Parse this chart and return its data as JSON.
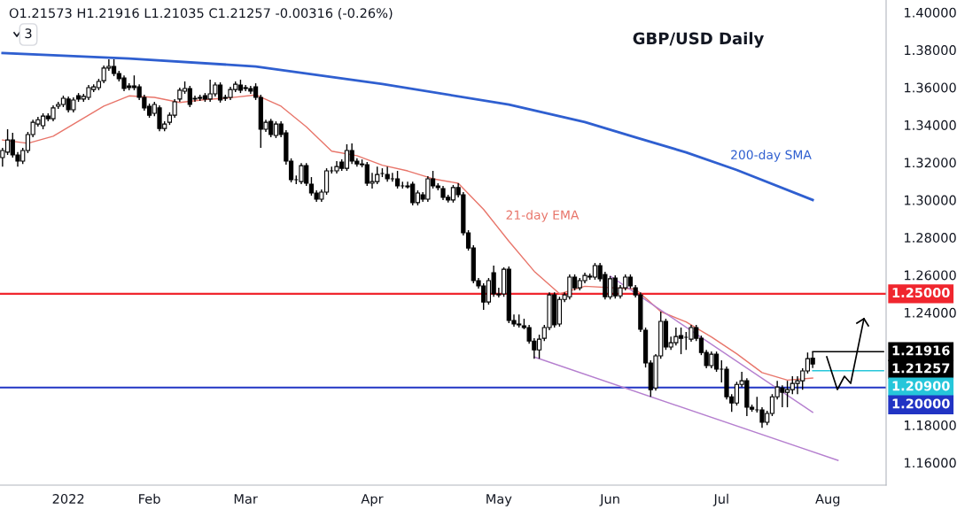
{
  "chart_data": {
    "type": "candlestick",
    "title": "GBP/USD Daily",
    "subtitle": "O1.21573 H1.21916 L1.21035 C1.21257 -0.00316 (-0.26%)",
    "annotations": [
      "3",
      "1.21257"
    ],
    "color": "#000000",
    "categories": [
      null,
      null,
      null,
      null,
      null,
      null,
      null,
      null,
      null,
      null,
      null,
      null,
      null,
      "2022",
      null,
      null,
      null,
      null,
      null,
      null,
      null,
      null,
      null,
      null,
      null,
      null,
      null,
      null,
      null,
      "Feb",
      null,
      null,
      null,
      null,
      null,
      null,
      null,
      null,
      null,
      null,
      null,
      null,
      null,
      null,
      null,
      null,
      null,
      null,
      "Mar",
      null,
      null,
      null,
      null,
      null,
      null,
      null,
      null,
      null,
      null,
      null,
      null,
      null,
      null,
      null,
      null,
      null,
      null,
      null,
      null,
      null,
      null,
      null,
      null,
      "Apr",
      null,
      null,
      null,
      null,
      null,
      null,
      null,
      null,
      null,
      null,
      null,
      null,
      null,
      null,
      null,
      null,
      null,
      null,
      null,
      null,
      null,
      null,
      null,
      null,
      "May",
      null,
      null,
      null,
      null,
      null,
      null,
      null,
      null,
      null,
      null,
      null,
      null,
      null,
      null,
      null,
      null,
      null,
      null,
      null,
      null,
      null,
      "Jun",
      null,
      null,
      null,
      null,
      null,
      null,
      null,
      null,
      null,
      null,
      null,
      null,
      null,
      null,
      null,
      null,
      null,
      null,
      null,
      null,
      null,
      "Jul",
      null,
      null,
      null,
      null,
      null,
      null,
      null,
      null,
      null,
      null,
      null,
      null,
      null,
      null,
      null,
      null,
      null,
      null,
      null,
      null,
      "Aug",
      null,
      null,
      null,
      null,
      null,
      null,
      null,
      null,
      null,
      null,
      null
    ],
    "ohlc": [
      [
        1.3226,
        1.3278,
        1.3178,
        1.3264
      ],
      [
        1.3255,
        1.3377,
        1.324,
        1.332
      ],
      [
        1.332,
        1.3358,
        1.3226,
        1.324
      ],
      [
        1.324,
        1.3255,
        1.3178,
        1.3207
      ],
      [
        1.3207,
        1.3278,
        1.3192,
        1.3264
      ],
      [
        1.3264,
        1.3363,
        1.325,
        1.3349
      ],
      [
        1.3349,
        1.3428,
        1.3334,
        1.3414
      ],
      [
        1.3405,
        1.3443,
        1.3391,
        1.3428
      ],
      [
        1.3396,
        1.3462,
        1.3377,
        1.3447
      ],
      [
        1.3447,
        1.3462,
        1.3419,
        1.3433
      ],
      [
        1.3433,
        1.3505,
        1.3419,
        1.3491
      ],
      [
        1.35,
        1.3523,
        1.3486,
        1.3509
      ],
      [
        1.3509,
        1.3556,
        1.3495,
        1.3542
      ],
      [
        1.3538,
        1.3552,
        1.3467,
        1.3481
      ],
      [
        1.3481,
        1.3547,
        1.3467,
        1.3533
      ],
      [
        1.3556,
        1.357,
        1.3523,
        1.3538
      ],
      [
        1.3538,
        1.3566,
        1.3523,
        1.3552
      ],
      [
        1.3547,
        1.3613,
        1.3533,
        1.3599
      ],
      [
        1.3589,
        1.3617,
        1.3575,
        1.3603
      ],
      [
        1.3599,
        1.3646,
        1.3585,
        1.3632
      ],
      [
        1.3636,
        1.3717,
        1.3622,
        1.3703
      ],
      [
        1.3703,
        1.375,
        1.3688,
        1.3712
      ],
      [
        1.3712,
        1.375,
        1.366,
        1.3674
      ],
      [
        1.3674,
        1.3688,
        1.3632,
        1.3646
      ],
      [
        1.365,
        1.3664,
        1.358,
        1.3594
      ],
      [
        1.3608,
        1.3622,
        1.3585,
        1.3599
      ],
      [
        1.3608,
        1.3664,
        1.3585,
        1.3599
      ],
      [
        1.3603,
        1.3617,
        1.3533,
        1.3547
      ],
      [
        1.3547,
        1.3561,
        1.3476,
        1.3491
      ],
      [
        1.35,
        1.3514,
        1.3438,
        1.3452
      ],
      [
        1.3462,
        1.3523,
        1.3447,
        1.3509
      ],
      [
        1.3491,
        1.3505,
        1.3367,
        1.3381
      ],
      [
        1.3381,
        1.3419,
        1.3367,
        1.3405
      ],
      [
        1.3414,
        1.3467,
        1.34,
        1.3452
      ],
      [
        1.3452,
        1.3538,
        1.3438,
        1.3523
      ],
      [
        1.3538,
        1.3599,
        1.3523,
        1.3585
      ],
      [
        1.358,
        1.3632,
        1.3566,
        1.3594
      ],
      [
        1.3594,
        1.3608,
        1.3495,
        1.3509
      ],
      [
        1.3538,
        1.3556,
        1.3523,
        1.3542
      ],
      [
        1.3547,
        1.3561,
        1.3528,
        1.3542
      ],
      [
        1.3556,
        1.357,
        1.3523,
        1.3538
      ],
      [
        1.3538,
        1.3641,
        1.3523,
        1.3566
      ],
      [
        1.3566,
        1.3627,
        1.3552,
        1.3613
      ],
      [
        1.3613,
        1.3627,
        1.3519,
        1.3533
      ],
      [
        1.3547,
        1.3561,
        1.3528,
        1.3542
      ],
      [
        1.3547,
        1.3603,
        1.3533,
        1.3589
      ],
      [
        1.3589,
        1.3632,
        1.3575,
        1.3617
      ],
      [
        1.3613,
        1.3641,
        1.357,
        1.3585
      ],
      [
        1.3599,
        1.3613,
        1.358,
        1.3594
      ],
      [
        1.3594,
        1.3608,
        1.3566,
        1.358
      ],
      [
        1.3603,
        1.3622,
        1.3533,
        1.3547
      ],
      [
        1.3547,
        1.3561,
        1.3278,
        1.3377
      ],
      [
        1.3377,
        1.3428,
        1.3363,
        1.3414
      ],
      [
        1.3419,
        1.3433,
        1.3334,
        1.3349
      ],
      [
        1.3344,
        1.3419,
        1.333,
        1.3405
      ],
      [
        1.3405,
        1.3419,
        1.3334,
        1.3349
      ],
      [
        1.3358,
        1.3372,
        1.3188,
        1.3207
      ],
      [
        1.3207,
        1.3222,
        1.3094,
        1.3108
      ],
      [
        1.3108,
        1.3131,
        1.3084,
        1.3108
      ],
      [
        1.3098,
        1.3197,
        1.3084,
        1.3183
      ],
      [
        1.3183,
        1.3197,
        1.3075,
        1.3089
      ],
      [
        1.3084,
        1.3122,
        1.3023,
        1.3037
      ],
      [
        1.3037,
        1.3051,
        1.299,
        1.3004
      ],
      [
        1.3004,
        1.3056,
        1.299,
        1.3042
      ],
      [
        1.3042,
        1.3169,
        1.3028,
        1.3155
      ],
      [
        1.3155,
        1.3178,
        1.3141,
        1.3155
      ],
      [
        1.3155,
        1.3207,
        1.3141,
        1.3178
      ],
      [
        1.3202,
        1.3216,
        1.3155,
        1.3169
      ],
      [
        1.3169,
        1.3297,
        1.3155,
        1.3264
      ],
      [
        1.3264,
        1.3302,
        1.3192,
        1.3207
      ],
      [
        1.3207,
        1.3222,
        1.3178,
        1.3192
      ],
      [
        1.3192,
        1.3216,
        1.3174,
        1.3188
      ],
      [
        1.3188,
        1.3202,
        1.3075,
        1.3089
      ],
      [
        1.3089,
        1.3145,
        1.3061,
        1.3098
      ],
      [
        1.3098,
        1.3178,
        1.3084,
        1.3136
      ],
      [
        1.3141,
        1.3169,
        1.3122,
        1.3141
      ],
      [
        1.3136,
        1.3178,
        1.3098,
        1.3113
      ],
      [
        1.3113,
        1.3145,
        1.3098,
        1.3113
      ],
      [
        1.3113,
        1.3155,
        1.3061,
        1.3075
      ],
      [
        1.3075,
        1.3098,
        1.3061,
        1.3075
      ],
      [
        1.3075,
        1.3098,
        1.3061,
        1.307
      ],
      [
        1.3084,
        1.3098,
        1.2971,
        1.2986
      ],
      [
        1.2986,
        1.3051,
        1.2971,
        1.3037
      ],
      [
        1.3028,
        1.3042,
        1.299,
        1.3004
      ],
      [
        1.3004,
        1.3127,
        1.299,
        1.3113
      ],
      [
        1.3113,
        1.3155,
        1.3061,
        1.3075
      ],
      [
        1.3075,
        1.3089,
        1.3051,
        1.3066
      ],
      [
        1.3061,
        1.3075,
        1.3,
        1.3014
      ],
      [
        1.3014,
        1.3028,
        1.2986,
        1.3
      ],
      [
        1.3,
        1.308,
        1.2986,
        1.3066
      ],
      [
        1.3066,
        1.3089,
        1.3014,
        1.3028
      ],
      [
        1.3028,
        1.3042,
        1.2811,
        1.2825
      ],
      [
        1.2825,
        1.2839,
        1.273,
        1.2744
      ],
      [
        1.2744,
        1.2759,
        1.2556,
        1.257
      ],
      [
        1.257,
        1.2584,
        1.2528,
        1.2542
      ],
      [
        1.2542,
        1.2556,
        1.2414,
        1.2456
      ],
      [
        1.2456,
        1.2584,
        1.2442,
        1.257
      ],
      [
        1.2612,
        1.265,
        1.2484,
        1.2499
      ],
      [
        1.2499,
        1.2532,
        1.248,
        1.2494
      ],
      [
        1.2499,
        1.2641,
        1.2484,
        1.2631
      ],
      [
        1.2631,
        1.2645,
        1.2343,
        1.2358
      ],
      [
        1.2358,
        1.239,
        1.2325,
        1.2339
      ],
      [
        1.2339,
        1.239,
        1.232,
        1.2334
      ],
      [
        1.2329,
        1.2367,
        1.2311,
        1.232
      ],
      [
        1.232,
        1.2334,
        1.2234,
        1.2248
      ],
      [
        1.2248,
        1.2263,
        1.2154,
        1.2201
      ],
      [
        1.2201,
        1.2282,
        1.2154,
        1.2258
      ],
      [
        1.2263,
        1.2334,
        1.2248,
        1.232
      ],
      [
        1.232,
        1.2508,
        1.2306,
        1.2494
      ],
      [
        1.2494,
        1.2508,
        1.232,
        1.2334
      ],
      [
        1.2339,
        1.2484,
        1.2325,
        1.247
      ],
      [
        1.247,
        1.2508,
        1.2456,
        1.2494
      ],
      [
        1.2484,
        1.2603,
        1.247,
        1.2589
      ],
      [
        1.2589,
        1.2603,
        1.2518,
        1.2532
      ],
      [
        1.2532,
        1.2584,
        1.2518,
        1.257
      ],
      [
        1.257,
        1.2612,
        1.2556,
        1.2598
      ],
      [
        1.2594,
        1.2608,
        1.2575,
        1.2589
      ],
      [
        1.2589,
        1.2664,
        1.2575,
        1.265
      ],
      [
        1.265,
        1.2664,
        1.2565,
        1.258
      ],
      [
        1.2603,
        1.2617,
        1.247,
        1.2484
      ],
      [
        1.2484,
        1.2594,
        1.247,
        1.258
      ],
      [
        1.2584,
        1.2598,
        1.2475,
        1.2489
      ],
      [
        1.2489,
        1.2547,
        1.2475,
        1.2532
      ],
      [
        1.2532,
        1.2603,
        1.2518,
        1.2589
      ],
      [
        1.2589,
        1.2603,
        1.2528,
        1.2542
      ],
      [
        1.2532,
        1.2547,
        1.248,
        1.2494
      ],
      [
        1.2494,
        1.2508,
        1.2296,
        1.2311
      ],
      [
        1.2306,
        1.232,
        1.2107,
        1.2131
      ],
      [
        1.2131,
        1.2145,
        1.1951,
        1.1989
      ],
      [
        1.1998,
        1.2178,
        1.1984,
        1.2169
      ],
      [
        1.2169,
        1.2405,
        1.2154,
        1.2353
      ],
      [
        1.2353,
        1.2367,
        1.2201,
        1.2216
      ],
      [
        1.2216,
        1.2272,
        1.2201,
        1.2239
      ],
      [
        1.2239,
        1.232,
        1.2225,
        1.2272
      ],
      [
        1.2277,
        1.232,
        1.2178,
        1.2263
      ],
      [
        1.2268,
        1.2296,
        1.2201,
        1.2268
      ],
      [
        1.2258,
        1.2334,
        1.2244,
        1.232
      ],
      [
        1.232,
        1.2334,
        1.2248,
        1.2263
      ],
      [
        1.2263,
        1.2277,
        1.2173,
        1.2187
      ],
      [
        1.2187,
        1.2201,
        1.2103,
        1.2117
      ],
      [
        1.2117,
        1.2192,
        1.2103,
        1.2178
      ],
      [
        1.2178,
        1.2192,
        1.2084,
        1.2098
      ],
      [
        1.2098,
        1.2145,
        1.2027,
        1.2098
      ],
      [
        1.2098,
        1.2112,
        1.1937,
        1.1951
      ],
      [
        1.1951,
        1.1965,
        1.1871,
        1.1918
      ],
      [
        1.1918,
        1.2031,
        1.1904,
        1.2017
      ],
      [
        1.2017,
        1.2084,
        1.2003,
        1.2036
      ],
      [
        1.2036,
        1.205,
        1.1848,
        1.1895
      ],
      [
        1.1895,
        1.1909,
        1.1871,
        1.1885
      ],
      [
        1.1881,
        1.1951,
        1.1867,
        1.1881
      ],
      [
        1.1881,
        1.1895,
        1.1786,
        1.1815
      ],
      [
        1.1815,
        1.1876,
        1.18,
        1.1862
      ],
      [
        1.1862,
        1.1965,
        1.1848,
        1.1951
      ],
      [
        1.1951,
        1.2036,
        1.1937,
        1.2003
      ],
      [
        1.1998,
        1.2012,
        1.1895,
        1.1975
      ],
      [
        1.1975,
        1.2036,
        1.1895,
        1.1989
      ],
      [
        1.1989,
        1.206,
        1.1965,
        1.2022
      ],
      [
        1.2022,
        1.206,
        1.1965,
        1.2036
      ],
      [
        1.2036,
        1.2103,
        1.1989,
        1.2089
      ],
      [
        1.2089,
        1.2187,
        1.2075,
        1.2154
      ],
      [
        1.21573,
        1.21916,
        1.21035,
        1.21257
      ],
      null,
      null,
      null,
      null,
      null,
      null,
      null,
      null,
      null,
      null,
      null,
      null,
      null,
      null
    ],
    "series": [
      {
        "name": "200-day SMA",
        "type": "line",
        "color": "#2f5fd0",
        "values": [
          1.3783,
          null,
          null,
          null,
          null,
          null,
          null,
          null,
          null,
          null,
          null,
          null,
          null,
          null,
          null,
          null,
          null,
          null,
          null,
          null,
          null,
          null,
          null,
          null,
          null,
          1.3754,
          null,
          null,
          null,
          null,
          null,
          null,
          null,
          null,
          null,
          null,
          null,
          null,
          null,
          null,
          null,
          null,
          null,
          null,
          null,
          null,
          null,
          null,
          null,
          null,
          1.3712,
          null,
          null,
          null,
          null,
          null,
          null,
          null,
          null,
          null,
          null,
          null,
          null,
          null,
          null,
          null,
          null,
          null,
          null,
          null,
          null,
          null,
          null,
          null,
          null,
          1.3618,
          null,
          null,
          null,
          null,
          null,
          null,
          null,
          null,
          null,
          null,
          null,
          null,
          null,
          null,
          null,
          null,
          null,
          null,
          null,
          null,
          null,
          null,
          null,
          null,
          1.3509,
          null,
          null,
          null,
          null,
          null,
          null,
          null,
          null,
          null,
          null,
          null,
          null,
          null,
          null,
          1.3415,
          null,
          null,
          null,
          null,
          null,
          null,
          null,
          null,
          null,
          1.3334,
          null,
          null,
          null,
          null,
          null,
          null,
          null,
          null,
          null,
          1.3254,
          null,
          null,
          null,
          null,
          null,
          null,
          null,
          null,
          null,
          1.316,
          null,
          null,
          null,
          null,
          null,
          null,
          null,
          null,
          null,
          null,
          null,
          null,
          null,
          null,
          1.3,
          null,
          null,
          null,
          null,
          null,
          null,
          null,
          null,
          null,
          null,
          null,
          null,
          null,
          null
        ]
      },
      {
        "name": "21-day EMA",
        "type": "line",
        "color": "#e8756a",
        "values": [
          1.332,
          null,
          null,
          null,
          null,
          1.3302,
          null,
          null,
          null,
          null,
          1.334,
          null,
          null,
          null,
          null,
          1.342,
          null,
          null,
          null,
          null,
          1.35,
          null,
          null,
          null,
          null,
          1.3555,
          null,
          null,
          null,
          null,
          1.3547,
          null,
          null,
          null,
          null,
          1.352,
          null,
          null,
          null,
          null,
          1.3535,
          null,
          null,
          null,
          null,
          1.3545,
          null,
          null,
          null,
          null,
          1.356,
          null,
          null,
          null,
          null,
          1.35,
          null,
          null,
          null,
          null,
          1.339,
          null,
          null,
          null,
          null,
          1.326,
          null,
          null,
          null,
          null,
          1.3236,
          null,
          null,
          null,
          null,
          1.3185,
          null,
          null,
          null,
          null,
          1.3155,
          null,
          null,
          null,
          null,
          1.3113,
          null,
          null,
          null,
          null,
          1.3089,
          null,
          null,
          null,
          null,
          1.295,
          null,
          null,
          null,
          null,
          1.278,
          null,
          null,
          null,
          null,
          1.262,
          null,
          null,
          null,
          null,
          1.25,
          null,
          null,
          null,
          null,
          1.254,
          null,
          null,
          null,
          null,
          null,
          null,
          null,
          null,
          null,
          1.2525,
          null,
          null,
          null,
          null,
          1.2405,
          null,
          null,
          null,
          null,
          1.235,
          null,
          null,
          null,
          null,
          1.227,
          null,
          null,
          null,
          null,
          1.218,
          null,
          null,
          null,
          null,
          1.208,
          null,
          null,
          null,
          null,
          1.204,
          null,
          null,
          null,
          null,
          1.2051,
          null,
          null,
          null,
          null,
          null,
          null,
          null,
          null,
          null,
          null,
          null,
          null,
          null,
          null
        ]
      },
      {
        "type": "line",
        "color": "#b57fcf",
        "values": [
          null,
          null,
          null,
          null,
          null,
          null,
          null,
          null,
          null,
          null,
          null,
          null,
          null,
          null,
          null,
          null,
          null,
          null,
          null,
          null,
          null,
          null,
          null,
          null,
          null,
          null,
          null,
          null,
          null,
          null,
          null,
          null,
          null,
          null,
          null,
          null,
          null,
          null,
          null,
          null,
          null,
          null,
          null,
          null,
          null,
          null,
          null,
          null,
          null,
          null,
          null,
          null,
          null,
          null,
          null,
          null,
          null,
          null,
          null,
          null,
          null,
          null,
          null,
          null,
          null,
          null,
          null,
          null,
          null,
          null,
          null,
          null,
          null,
          null,
          null,
          null,
          null,
          null,
          null,
          null,
          null,
          null,
          null,
          null,
          null,
          null,
          null,
          null,
          null,
          null,
          null,
          null,
          null,
          null,
          null,
          null,
          null,
          null,
          null,
          null,
          null,
          null,
          null,
          null,
          null,
          null,
          null,
          null,
          null,
          null,
          null,
          null,
          null,
          null,
          null,
          null,
          null,
          null,
          null,
          null,
          1.2594,
          null,
          null,
          null,
          null,
          null,
          null,
          null,
          null,
          null,
          null,
          null,
          null,
          null,
          null,
          null,
          null,
          null,
          null,
          null,
          null,
          null,
          null,
          null,
          null,
          null,
          null,
          null,
          null,
          null,
          null,
          null,
          null,
          null,
          null,
          null,
          null,
          null,
          null,
          null,
          1.1868,
          null,
          null,
          null,
          null,
          null,
          null,
          null,
          null,
          null,
          null,
          null,
          null,
          null,
          null
        ]
      },
      {
        "type": "line",
        "color": "#b57fcf",
        "values": [
          null,
          null,
          null,
          null,
          null,
          null,
          null,
          null,
          null,
          null,
          null,
          null,
          null,
          null,
          null,
          null,
          null,
          null,
          null,
          null,
          null,
          null,
          null,
          null,
          null,
          null,
          null,
          null,
          null,
          null,
          null,
          null,
          null,
          null,
          null,
          null,
          null,
          null,
          null,
          null,
          null,
          null,
          null,
          null,
          null,
          null,
          null,
          null,
          null,
          null,
          null,
          null,
          null,
          null,
          null,
          null,
          null,
          null,
          null,
          null,
          null,
          null,
          null,
          null,
          null,
          null,
          null,
          null,
          null,
          null,
          null,
          null,
          null,
          null,
          null,
          null,
          null,
          null,
          null,
          null,
          null,
          null,
          null,
          null,
          null,
          null,
          null,
          null,
          null,
          null,
          null,
          null,
          null,
          null,
          null,
          null,
          null,
          null,
          null,
          null,
          null,
          null,
          null,
          null,
          null,
          1.2163,
          null,
          null,
          null,
          null,
          null,
          null,
          null,
          null,
          null,
          null,
          null,
          null,
          null,
          null,
          null,
          null,
          null,
          null,
          null,
          null,
          null,
          null,
          null,
          null,
          null,
          null,
          null,
          null,
          null,
          null,
          null,
          null,
          null,
          null,
          null,
          null,
          null,
          null,
          null,
          null,
          null,
          null,
          null,
          null,
          null,
          null,
          null,
          null,
          null,
          null,
          null,
          null,
          null,
          null,
          null,
          null,
          null,
          null,
          null,
          1.1612,
          null,
          null,
          null,
          null,
          null,
          null,
          null,
          null,
          null
        ]
      },
      {
        "name": "1.21916",
        "type": "line",
        "color": "#000000",
        "values": [
          null,
          null,
          null,
          null,
          null,
          null,
          null,
          null,
          null,
          null,
          null,
          null,
          null,
          null,
          null,
          null,
          null,
          null,
          null,
          null,
          null,
          null,
          null,
          null,
          null,
          null,
          null,
          null,
          null,
          null,
          null,
          null,
          null,
          null,
          null,
          null,
          null,
          null,
          null,
          null,
          null,
          null,
          null,
          null,
          null,
          null,
          null,
          null,
          null,
          null,
          null,
          null,
          null,
          null,
          null,
          null,
          null,
          null,
          null,
          null,
          null,
          null,
          null,
          null,
          null,
          null,
          null,
          null,
          null,
          null,
          null,
          null,
          null,
          null,
          null,
          null,
          null,
          null,
          null,
          null,
          null,
          null,
          null,
          null,
          null,
          null,
          null,
          null,
          null,
          null,
          null,
          null,
          null,
          null,
          null,
          null,
          null,
          null,
          null,
          null,
          null,
          null,
          null,
          null,
          null,
          null,
          null,
          null,
          null,
          null,
          null,
          null,
          null,
          null,
          null,
          null,
          null,
          null,
          null,
          null,
          null,
          null,
          null,
          null,
          null,
          null,
          null,
          null,
          null,
          null,
          null,
          null,
          null,
          null,
          null,
          null,
          null,
          null,
          null,
          null,
          null,
          null,
          null,
          null,
          null,
          null,
          null,
          null,
          null,
          null,
          null,
          null,
          null,
          null,
          null,
          null,
          null,
          null,
          null,
          null,
          1.21916,
          null,
          null,
          null,
          null,
          null,
          null,
          null,
          null,
          null,
          null,
          null,
          null,
          null,
          1.21916
        ]
      },
      {
        "name": "1.20900",
        "type": "line",
        "color": "#26c6da",
        "values": [
          null,
          null,
          null,
          null,
          null,
          null,
          null,
          null,
          null,
          null,
          null,
          null,
          null,
          null,
          null,
          null,
          null,
          null,
          null,
          null,
          null,
          null,
          null,
          null,
          null,
          null,
          null,
          null,
          null,
          null,
          null,
          null,
          null,
          null,
          null,
          null,
          null,
          null,
          null,
          null,
          null,
          null,
          null,
          null,
          null,
          null,
          null,
          null,
          null,
          null,
          null,
          null,
          null,
          null,
          null,
          null,
          null,
          null,
          null,
          null,
          null,
          null,
          null,
          null,
          null,
          null,
          null,
          null,
          null,
          null,
          null,
          null,
          null,
          null,
          null,
          null,
          null,
          null,
          null,
          null,
          null,
          null,
          null,
          null,
          null,
          null,
          null,
          null,
          null,
          null,
          null,
          null,
          null,
          null,
          null,
          null,
          null,
          null,
          null,
          null,
          null,
          null,
          null,
          null,
          null,
          null,
          null,
          null,
          null,
          null,
          null,
          null,
          null,
          null,
          null,
          null,
          null,
          null,
          null,
          null,
          null,
          null,
          null,
          null,
          null,
          null,
          null,
          null,
          null,
          null,
          null,
          null,
          null,
          null,
          null,
          null,
          null,
          null,
          null,
          null,
          null,
          null,
          null,
          null,
          null,
          null,
          null,
          null,
          null,
          null,
          null,
          null,
          null,
          null,
          null,
          null,
          null,
          null,
          null,
          null,
          1.209,
          null,
          null,
          null,
          null,
          null,
          null,
          null,
          null,
          null,
          null,
          null,
          null,
          null,
          1.209
        ]
      }
    ],
    "ref_lines": [
      {
        "axis": "y",
        "value": 1.25,
        "label": "1.25000",
        "color": "#f0262e"
      },
      {
        "axis": "y",
        "value": 1.2,
        "label": "1.20000",
        "color": "#2134c4"
      }
    ],
    "ylim": [
      1.148,
      1.4066
    ],
    "yticks": [
      {
        "value": 1.16,
        "label": "1.16000"
      },
      {
        "value": 1.18,
        "label": "1.18000"
      },
      {
        "value": 1.24,
        "label": "1.24000"
      },
      {
        "value": 1.26,
        "label": "1.26000"
      },
      {
        "value": 1.28,
        "label": "1.28000"
      },
      {
        "value": 1.3,
        "label": "1.30000"
      },
      {
        "value": 1.32,
        "label": "1.32000"
      },
      {
        "value": 1.34,
        "label": "1.34000"
      },
      {
        "value": 1.36,
        "label": "1.36000"
      },
      {
        "value": 1.38,
        "label": "1.38000"
      },
      {
        "value": 1.4,
        "label": "1.40000"
      }
    ]
  }
}
